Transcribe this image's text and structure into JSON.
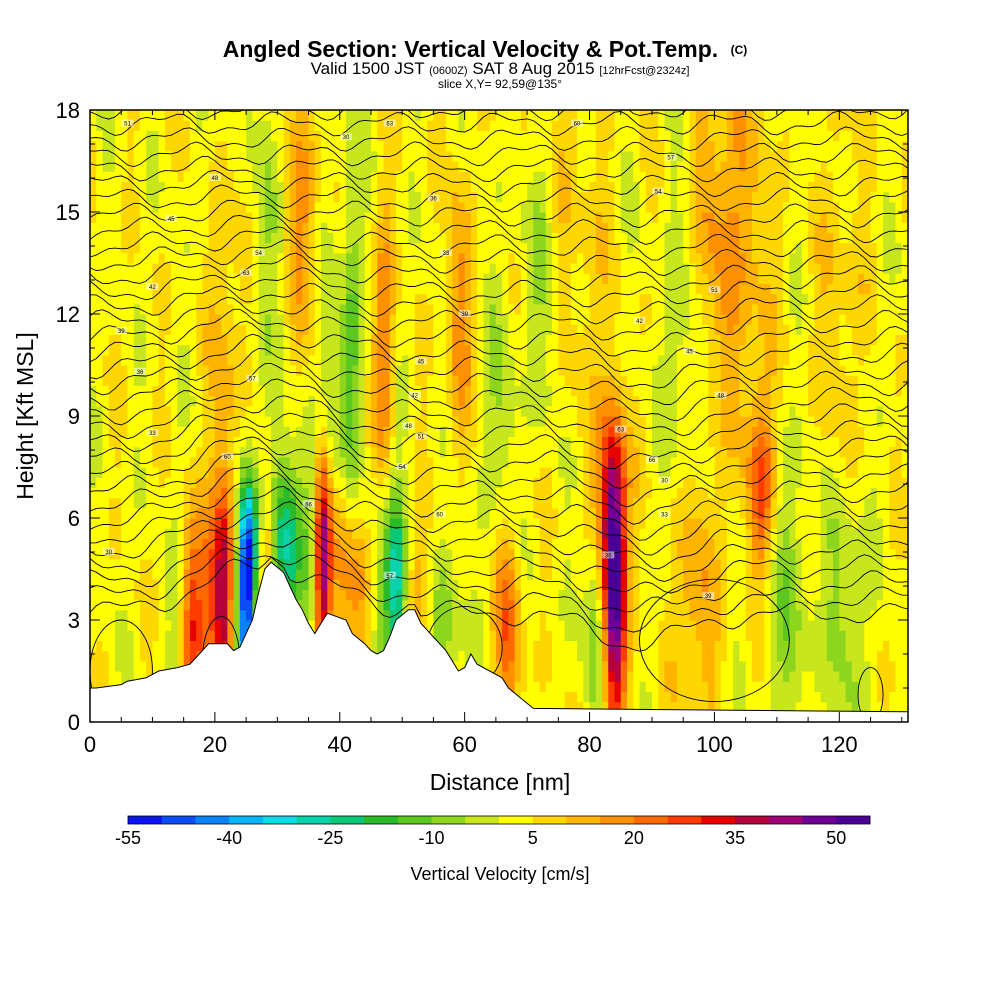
{
  "title": {
    "main": "Angled Section: Vertical Velocity & Pot.Temp.",
    "main_suffix": "(C)",
    "valid_prefix": "Valid 1500 JST",
    "valid_small": "(0600Z)",
    "valid_date": "SAT 8 Aug 2015",
    "valid_fcst": "[12hrFcst@2324z]",
    "slice": "slice X,Y= 92,59@135°"
  },
  "chart_data": {
    "type": "heatmap",
    "xlabel": "Distance [nm]",
    "ylabel": "Height [Kft MSL]",
    "xlim": [
      0,
      131
    ],
    "ylim": [
      0,
      18
    ],
    "x_ticks": [
      0,
      20,
      40,
      60,
      80,
      100,
      120
    ],
    "y_ticks": [
      0,
      3,
      6,
      9,
      12,
      15,
      18
    ],
    "colorbar": {
      "label": "Vertical Velocity [cm/s]",
      "min": -55,
      "max": 55,
      "step": 5,
      "tick_values": [
        -55,
        -40,
        -25,
        -10,
        5,
        20,
        35,
        50
      ],
      "colors": [
        "#0a14f0",
        "#0a4cf5",
        "#0a82f8",
        "#0ab6fb",
        "#0adbe6",
        "#0ad2aa",
        "#0ac878",
        "#2aba2a",
        "#5cc71e",
        "#8ed61e",
        "#c8e61e",
        "#ffff00",
        "#ffd700",
        "#ffb400",
        "#ff9100",
        "#ff6a00",
        "#ff3c00",
        "#e60000",
        "#b4003c",
        "#a00078",
        "#6e0096",
        "#4b0096"
      ]
    },
    "terrain_profile": {
      "x": [
        0,
        1,
        5,
        6,
        9,
        11,
        14,
        16,
        17,
        18,
        19,
        22,
        23,
        24,
        25,
        26,
        27,
        28,
        29,
        31,
        32,
        33,
        34,
        35,
        36,
        37,
        38,
        41,
        42,
        44,
        45,
        46,
        47,
        48,
        49,
        51,
        52,
        53,
        54,
        55,
        56,
        57,
        58,
        59,
        60,
        61,
        62,
        66,
        67,
        69,
        71,
        131
      ],
      "z": [
        1.0,
        1.0,
        1.1,
        1.2,
        1.3,
        1.5,
        1.6,
        1.7,
        1.9,
        2.1,
        2.3,
        2.3,
        2.1,
        2.2,
        2.6,
        3.0,
        3.8,
        4.5,
        4.7,
        4.4,
        4.0,
        3.6,
        3.3,
        2.9,
        2.6,
        2.9,
        3.2,
        3.0,
        2.6,
        2.3,
        2.1,
        2.0,
        2.1,
        2.5,
        3.0,
        3.3,
        3.3,
        2.9,
        2.7,
        2.5,
        2.3,
        2.1,
        1.8,
        1.5,
        1.6,
        2.0,
        1.7,
        1.3,
        1.0,
        0.7,
        0.4,
        0.3
      ]
    },
    "velocity_cells": [
      {
        "x": 15,
        "z": 3.5,
        "w": -10,
        "sx": 1.2,
        "sz": 2.0
      },
      {
        "x": 16,
        "z": 3.0,
        "w": 25,
        "sx": 1.2,
        "sz": 2.2
      },
      {
        "x": 19,
        "z": 3.8,
        "w": 18,
        "sx": 1.5,
        "sz": 2.0
      },
      {
        "x": 21.5,
        "z": 3.5,
        "w": 38,
        "sx": 1.3,
        "sz": 2.5
      },
      {
        "x": 23.3,
        "z": 3.5,
        "w": -18,
        "sx": 1.0,
        "sz": 2.5
      },
      {
        "x": 25,
        "z": 3.5,
        "w": -50,
        "sx": 0.8,
        "sz": 2.2
      },
      {
        "x": 25.8,
        "z": 5.2,
        "w": -28,
        "sx": 1.1,
        "sz": 1.3
      },
      {
        "x": 28.2,
        "z": 5.0,
        "w": 18,
        "sx": 1.1,
        "sz": 1.6
      },
      {
        "x": 30.5,
        "z": 5.5,
        "w": -25,
        "sx": 1.3,
        "sz": 1.8
      },
      {
        "x": 32.5,
        "z": 5.0,
        "w": -20,
        "sx": 1.1,
        "sz": 1.8
      },
      {
        "x": 35.5,
        "z": 4.5,
        "w": -12,
        "sx": 1.0,
        "sz": 2.0
      },
      {
        "x": 37.2,
        "z": 4.8,
        "w": 44,
        "sx": 1.0,
        "sz": 2.2
      },
      {
        "x": 41,
        "z": 4.5,
        "w": 15,
        "sx": 1.8,
        "sz": 2.2
      },
      {
        "x": 44,
        "z": 4.0,
        "w": 10,
        "sx": 1.8,
        "sz": 2.0
      },
      {
        "x": 46,
        "z": 4.5,
        "w": -12,
        "sx": 1.5,
        "sz": 2.5
      },
      {
        "x": 49,
        "z": 4.0,
        "w": -32,
        "sx": 1.2,
        "sz": 1.8
      },
      {
        "x": 53,
        "z": 3.5,
        "w": 12,
        "sx": 1.5,
        "sz": 1.8
      },
      {
        "x": 57,
        "z": 3.0,
        "w": -12,
        "sx": 1.8,
        "sz": 2.0
      },
      {
        "x": 67,
        "z": 2.8,
        "w": 20,
        "sx": 1.5,
        "sz": 2.2
      },
      {
        "x": 84,
        "z": 3.8,
        "w": 48,
        "sx": 1.3,
        "sz": 3.0
      },
      {
        "x": 83,
        "z": 6.5,
        "w": 22,
        "sx": 2.0,
        "sz": 2.0
      },
      {
        "x": 81,
        "z": 3.5,
        "w": -15,
        "sx": 1.4,
        "sz": 2.5
      },
      {
        "x": 97,
        "z": 3.5,
        "w": 12,
        "sx": 2.5,
        "sz": 2.5
      },
      {
        "x": 107.5,
        "z": 7.0,
        "w": 22,
        "sx": 1.5,
        "sz": 1.8
      },
      {
        "x": 112,
        "z": 3.5,
        "w": -10,
        "sx": 2.5,
        "sz": 3.0
      },
      {
        "x": 121,
        "z": 3.5,
        "w": -10,
        "sx": 2.5,
        "sz": 3.0
      },
      {
        "x": 42,
        "z": 12.0,
        "w": -12,
        "sx": 1.0,
        "sz": 5.0
      },
      {
        "x": 47,
        "z": 11.0,
        "w": 17,
        "sx": 1.2,
        "sz": 3.0
      },
      {
        "x": 59,
        "z": 12.0,
        "w": 14,
        "sx": 1.5,
        "sz": 3.0
      },
      {
        "x": 34,
        "z": 15.0,
        "w": 11,
        "sx": 2.0,
        "sz": 3.0
      },
      {
        "x": 28,
        "z": 14.0,
        "w": -8,
        "sx": 1.5,
        "sz": 4.0
      },
      {
        "x": 22,
        "z": 11.0,
        "w": 9,
        "sx": 2.0,
        "sz": 3.0
      },
      {
        "x": 39,
        "z": 9.0,
        "w": -11,
        "sx": 2.0,
        "sz": 3.0
      },
      {
        "x": 73,
        "z": 14.0,
        "w": -9,
        "sx": 2.0,
        "sz": 3.0
      },
      {
        "x": 66,
        "z": 9.0,
        "w": -8,
        "sx": 2.0,
        "sz": 3.0
      },
      {
        "x": 95,
        "z": 11.0,
        "w": -10,
        "sx": 2.0,
        "sz": 3.0
      },
      {
        "x": 105,
        "z": 13.0,
        "w": 9,
        "sx": 3.0,
        "sz": 4.0
      },
      {
        "x": 120,
        "z": 12.0,
        "w": 6,
        "sx": 3.0,
        "sz": 4.0
      },
      {
        "x": 101,
        "z": 16.0,
        "w": 8,
        "sx": 3.0,
        "sz": 3.0
      },
      {
        "x": 75,
        "z": 16.5,
        "w": 8,
        "sx": 2.0,
        "sz": 3.0
      },
      {
        "x": 80,
        "z": 13.0,
        "w": 6,
        "sx": 2.0,
        "sz": 3.0
      },
      {
        "x": 98,
        "z": 12.0,
        "w": 6,
        "sx": 2.5,
        "sz": 3.5
      }
    ],
    "theta_labels": [
      "30",
      "33",
      "36",
      "39",
      "42",
      "45",
      "48",
      "51",
      "54",
      "57",
      "60",
      "63",
      "66"
    ]
  }
}
